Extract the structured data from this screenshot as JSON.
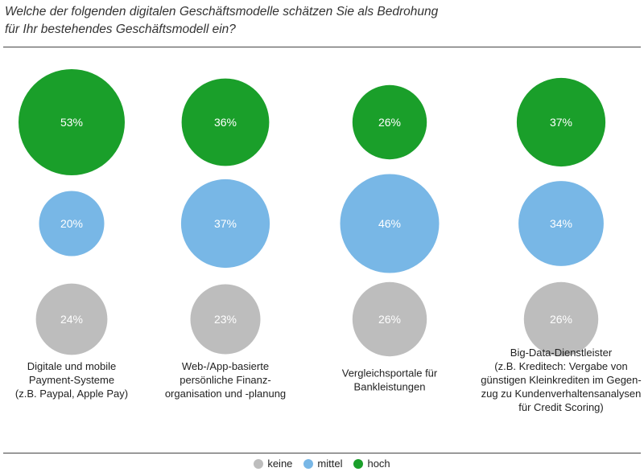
{
  "chart_data": {
    "type": "bubble",
    "title_lines": [
      "Welche der folgenden digitalen Geschäftsmodelle schätzen Sie als Bedrohung",
      "für Ihr bestehendes Geschäftsmodell ein?"
    ],
    "categories": [
      [
        "Digitale und mobile",
        "Payment-Systeme",
        "(z.B. Paypal, Apple Pay)"
      ],
      [
        "Web-/App-basierte",
        "persönliche Finanz-",
        "organisation und -planung"
      ],
      [
        "Vergleichsportale für",
        "Bankleistungen"
      ],
      [
        "Big-Data-Dienstleister",
        "(z.B. Kreditech: Vergabe von",
        "günstigen Kleinkrediten im Gegen-",
        "zug zu Kundenverhaltensanalysen",
        "für Credit Scoring)"
      ]
    ],
    "series": [
      {
        "name": "hoch",
        "color": "#1a9f2a",
        "values": [
          53,
          36,
          26,
          37
        ],
        "labels": [
          "53%",
          "36%",
          "26%",
          "37%"
        ]
      },
      {
        "name": "mittel",
        "color": "#78b7e6",
        "values": [
          20,
          37,
          46,
          34
        ],
        "labels": [
          "20%",
          "37%",
          "46%",
          "34%"
        ]
      },
      {
        "name": "keine",
        "color": "#bdbdbd",
        "values": [
          24,
          23,
          26,
          26
        ],
        "labels": [
          "24%",
          "23%",
          "26%",
          "26%"
        ]
      }
    ],
    "legend": [
      {
        "name": "keine",
        "color": "#bdbdbd"
      },
      {
        "name": "mittel",
        "color": "#78b7e6"
      },
      {
        "name": "hoch",
        "color": "#1a9f2a"
      }
    ],
    "legend_position": "bottom-center",
    "grid": false
  }
}
